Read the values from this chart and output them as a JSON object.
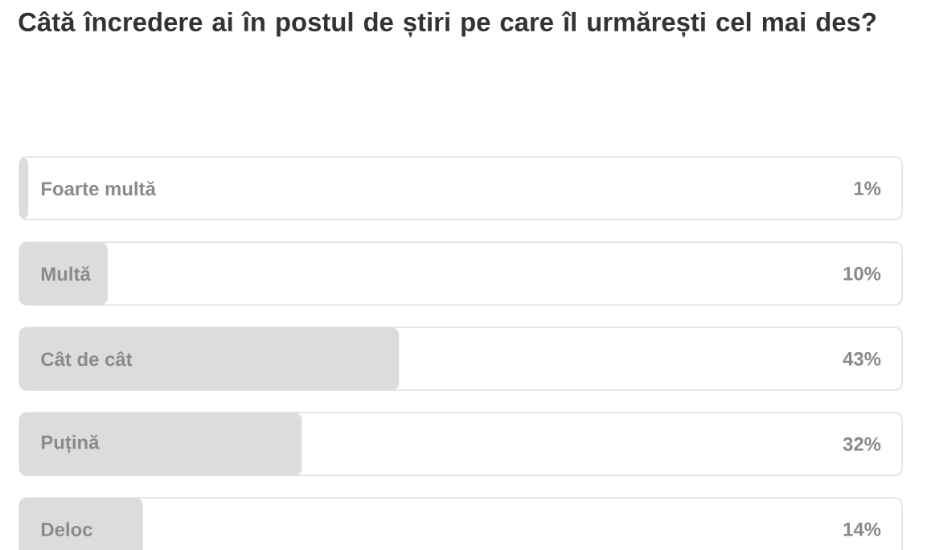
{
  "chart_data": {
    "type": "bar",
    "orientation": "horizontal",
    "title": "Câtă încredere ai în postul de știri pe care îl urmărești cel mai des?",
    "categories": [
      "Foarte multă",
      "Multă",
      "Cât de cât",
      "Puțină",
      "Deloc"
    ],
    "values": [
      1,
      10,
      43,
      32,
      14
    ],
    "value_labels": [
      "1%",
      "10%",
      "43%",
      "32%",
      "14%"
    ],
    "color": "#dcdcdc",
    "xlim": [
      0,
      100
    ],
    "tick_labels": false
  }
}
